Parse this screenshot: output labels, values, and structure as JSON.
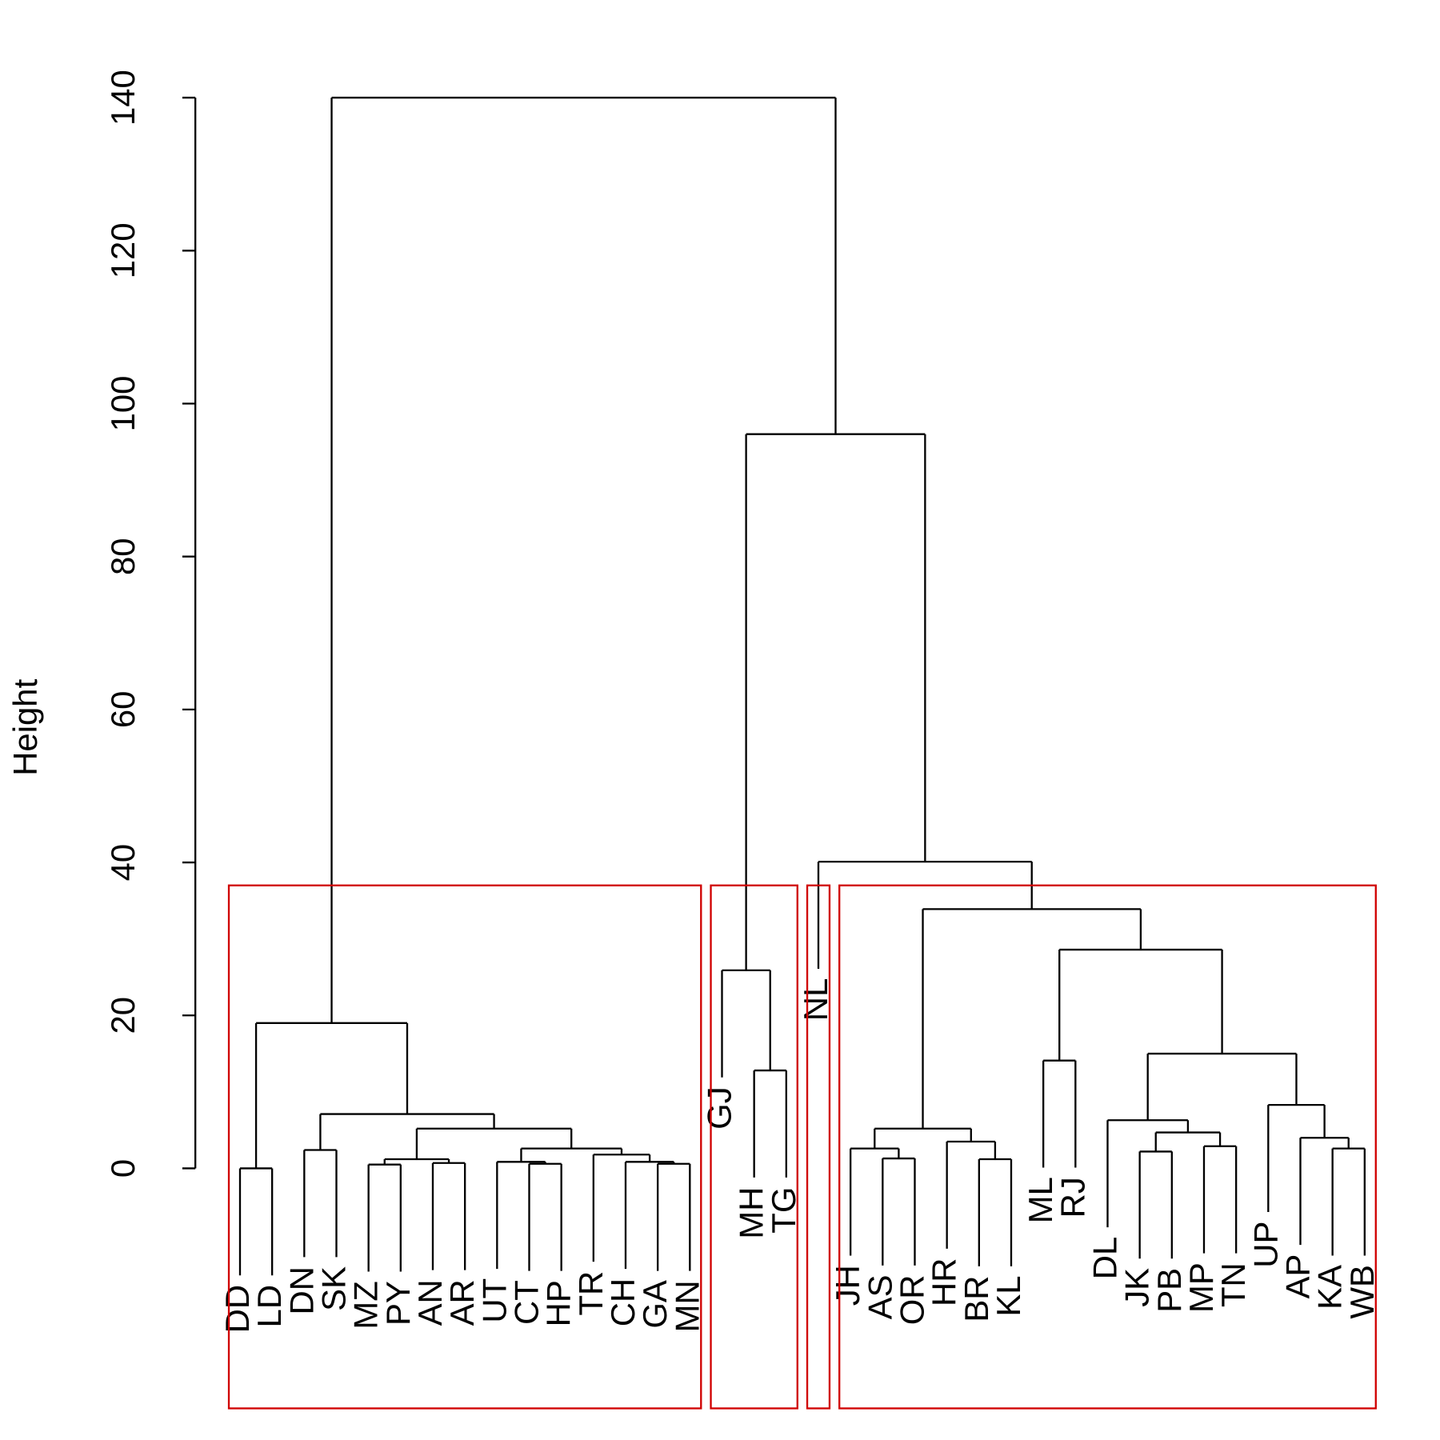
{
  "chart_data": {
    "type": "dendrogram",
    "ylabel": "Height",
    "ylim": [
      0,
      140
    ],
    "yticks": [
      0,
      20,
      40,
      60,
      80,
      100,
      120,
      140
    ],
    "rect_k": 4,
    "rect_color": "#d00000",
    "tree": {
      "height": 140,
      "children": [
        {
          "height": 19,
          "children": [
            {
              "height": 0,
              "children": [
                {
                  "label": "DD"
                },
                {
                  "label": "LD"
                }
              ]
            },
            {
              "height": 7.1,
              "children": [
                {
                  "height": 2.4,
                  "children": [
                    {
                      "label": "DN"
                    },
                    {
                      "label": "SK"
                    }
                  ]
                },
                {
                  "height": 5.2,
                  "children": [
                    {
                      "height": 1.2,
                      "children": [
                        {
                          "height": 0.5,
                          "children": [
                            {
                              "label": "MZ"
                            },
                            {
                              "label": "PY"
                            }
                          ]
                        },
                        {
                          "height": 0.7,
                          "children": [
                            {
                              "label": "AN"
                            },
                            {
                              "label": "AR"
                            }
                          ]
                        }
                      ]
                    },
                    {
                      "height": 2.6,
                      "children": [
                        {
                          "height": 0.85,
                          "children": [
                            {
                              "label": "UT"
                            },
                            {
                              "height": 0.6,
                              "children": [
                                {
                                  "label": "CT"
                                },
                                {
                                  "label": "HP"
                                }
                              ]
                            }
                          ]
                        },
                        {
                          "height": 1.8,
                          "children": [
                            {
                              "label": "TR"
                            },
                            {
                              "height": 0.85,
                              "children": [
                                {
                                  "label": "CH"
                                },
                                {
                                  "height": 0.6,
                                  "children": [
                                    {
                                      "label": "GA"
                                    },
                                    {
                                      "label": "MN"
                                    }
                                  ]
                                }
                              ]
                            }
                          ]
                        }
                      ]
                    }
                  ]
                }
              ]
            }
          ]
        },
        {
          "height": 96,
          "children": [
            {
              "height": 25.9,
              "children": [
                {
                  "label": "GJ"
                },
                {
                  "height": 12.8,
                  "children": [
                    {
                      "label": "MH"
                    },
                    {
                      "label": "TG"
                    }
                  ]
                }
              ]
            },
            {
              "height": 40.1,
              "children": [
                {
                  "label": "NL"
                },
                {
                  "height": 33.9,
                  "children": [
                    {
                      "height": 5.2,
                      "children": [
                        {
                          "height": 2.6,
                          "children": [
                            {
                              "label": "JH"
                            },
                            {
                              "height": 1.3,
                              "children": [
                                {
                                  "label": "AS"
                                },
                                {
                                  "label": "OR"
                                }
                              ]
                            }
                          ]
                        },
                        {
                          "height": 3.5,
                          "children": [
                            {
                              "label": "HR"
                            },
                            {
                              "height": 1.2,
                              "children": [
                                {
                                  "label": "BR"
                                },
                                {
                                  "label": "KL"
                                }
                              ]
                            }
                          ]
                        }
                      ]
                    },
                    {
                      "height": 28.6,
                      "children": [
                        {
                          "height": 14.1,
                          "children": [
                            {
                              "label": "ML"
                            },
                            {
                              "label": "RJ"
                            }
                          ]
                        },
                        {
                          "height": 15.0,
                          "children": [
                            {
                              "height": 6.3,
                              "children": [
                                {
                                  "label": "DL"
                                },
                                {
                                  "height": 4.7,
                                  "children": [
                                    {
                                      "height": 2.2,
                                      "children": [
                                        {
                                          "label": "JK"
                                        },
                                        {
                                          "label": "PB"
                                        }
                                      ]
                                    },
                                    {
                                      "height": 2.9,
                                      "children": [
                                        {
                                          "label": "MP"
                                        },
                                        {
                                          "label": "TN"
                                        }
                                      ]
                                    }
                                  ]
                                }
                              ]
                            },
                            {
                              "height": 8.3,
                              "children": [
                                {
                                  "label": "UP"
                                },
                                {
                                  "height": 4.0,
                                  "children": [
                                    {
                                      "label": "AP"
                                    },
                                    {
                                      "height": 2.6,
                                      "children": [
                                        {
                                          "label": "KA"
                                        },
                                        {
                                          "label": "WB"
                                        }
                                      ]
                                    }
                                  ]
                                }
                              ]
                            }
                          ]
                        }
                      ]
                    }
                  ]
                }
              ]
            }
          ]
        }
      ]
    }
  }
}
